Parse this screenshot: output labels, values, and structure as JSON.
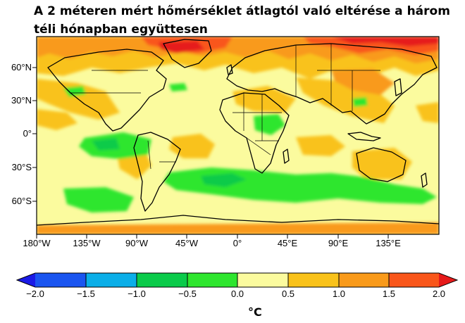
{
  "title": "A 2 méteren mért hőmérséklet átlagtól való eltérése a három téli hónapban együttesen",
  "map": {
    "lat_ticks": [
      "60°N",
      "30°N",
      "0°",
      "30°S",
      "60°S"
    ],
    "lon_ticks": [
      "180°W",
      "135°W",
      "90°W",
      "45°W",
      "0°",
      "45°E",
      "90°E",
      "135°E"
    ]
  },
  "colorbar": {
    "ticks": [
      "−2.0",
      "−1.5",
      "−1.0",
      "−0.5",
      "0.0",
      "0.5",
      "1.0",
      "1.5",
      "2.0"
    ],
    "unit": "°C",
    "colors": [
      "#1a55f0",
      "#0aaee8",
      "#0acb4a",
      "#2ee62e",
      "#fbfb9e",
      "#f9c21a",
      "#f99a1a",
      "#f9561a"
    ],
    "under_color": "#1a1ae6",
    "over_color": "#e61a1a"
  },
  "palette": {
    "ocean_base": "#fbfb9e",
    "warm_1": "#f9c21a",
    "warm_2": "#f99a1a",
    "warm_3": "#f9561a",
    "warm_4": "#e61a1a",
    "cool_1": "#2ee62e",
    "cool_2": "#0acb4a"
  }
}
